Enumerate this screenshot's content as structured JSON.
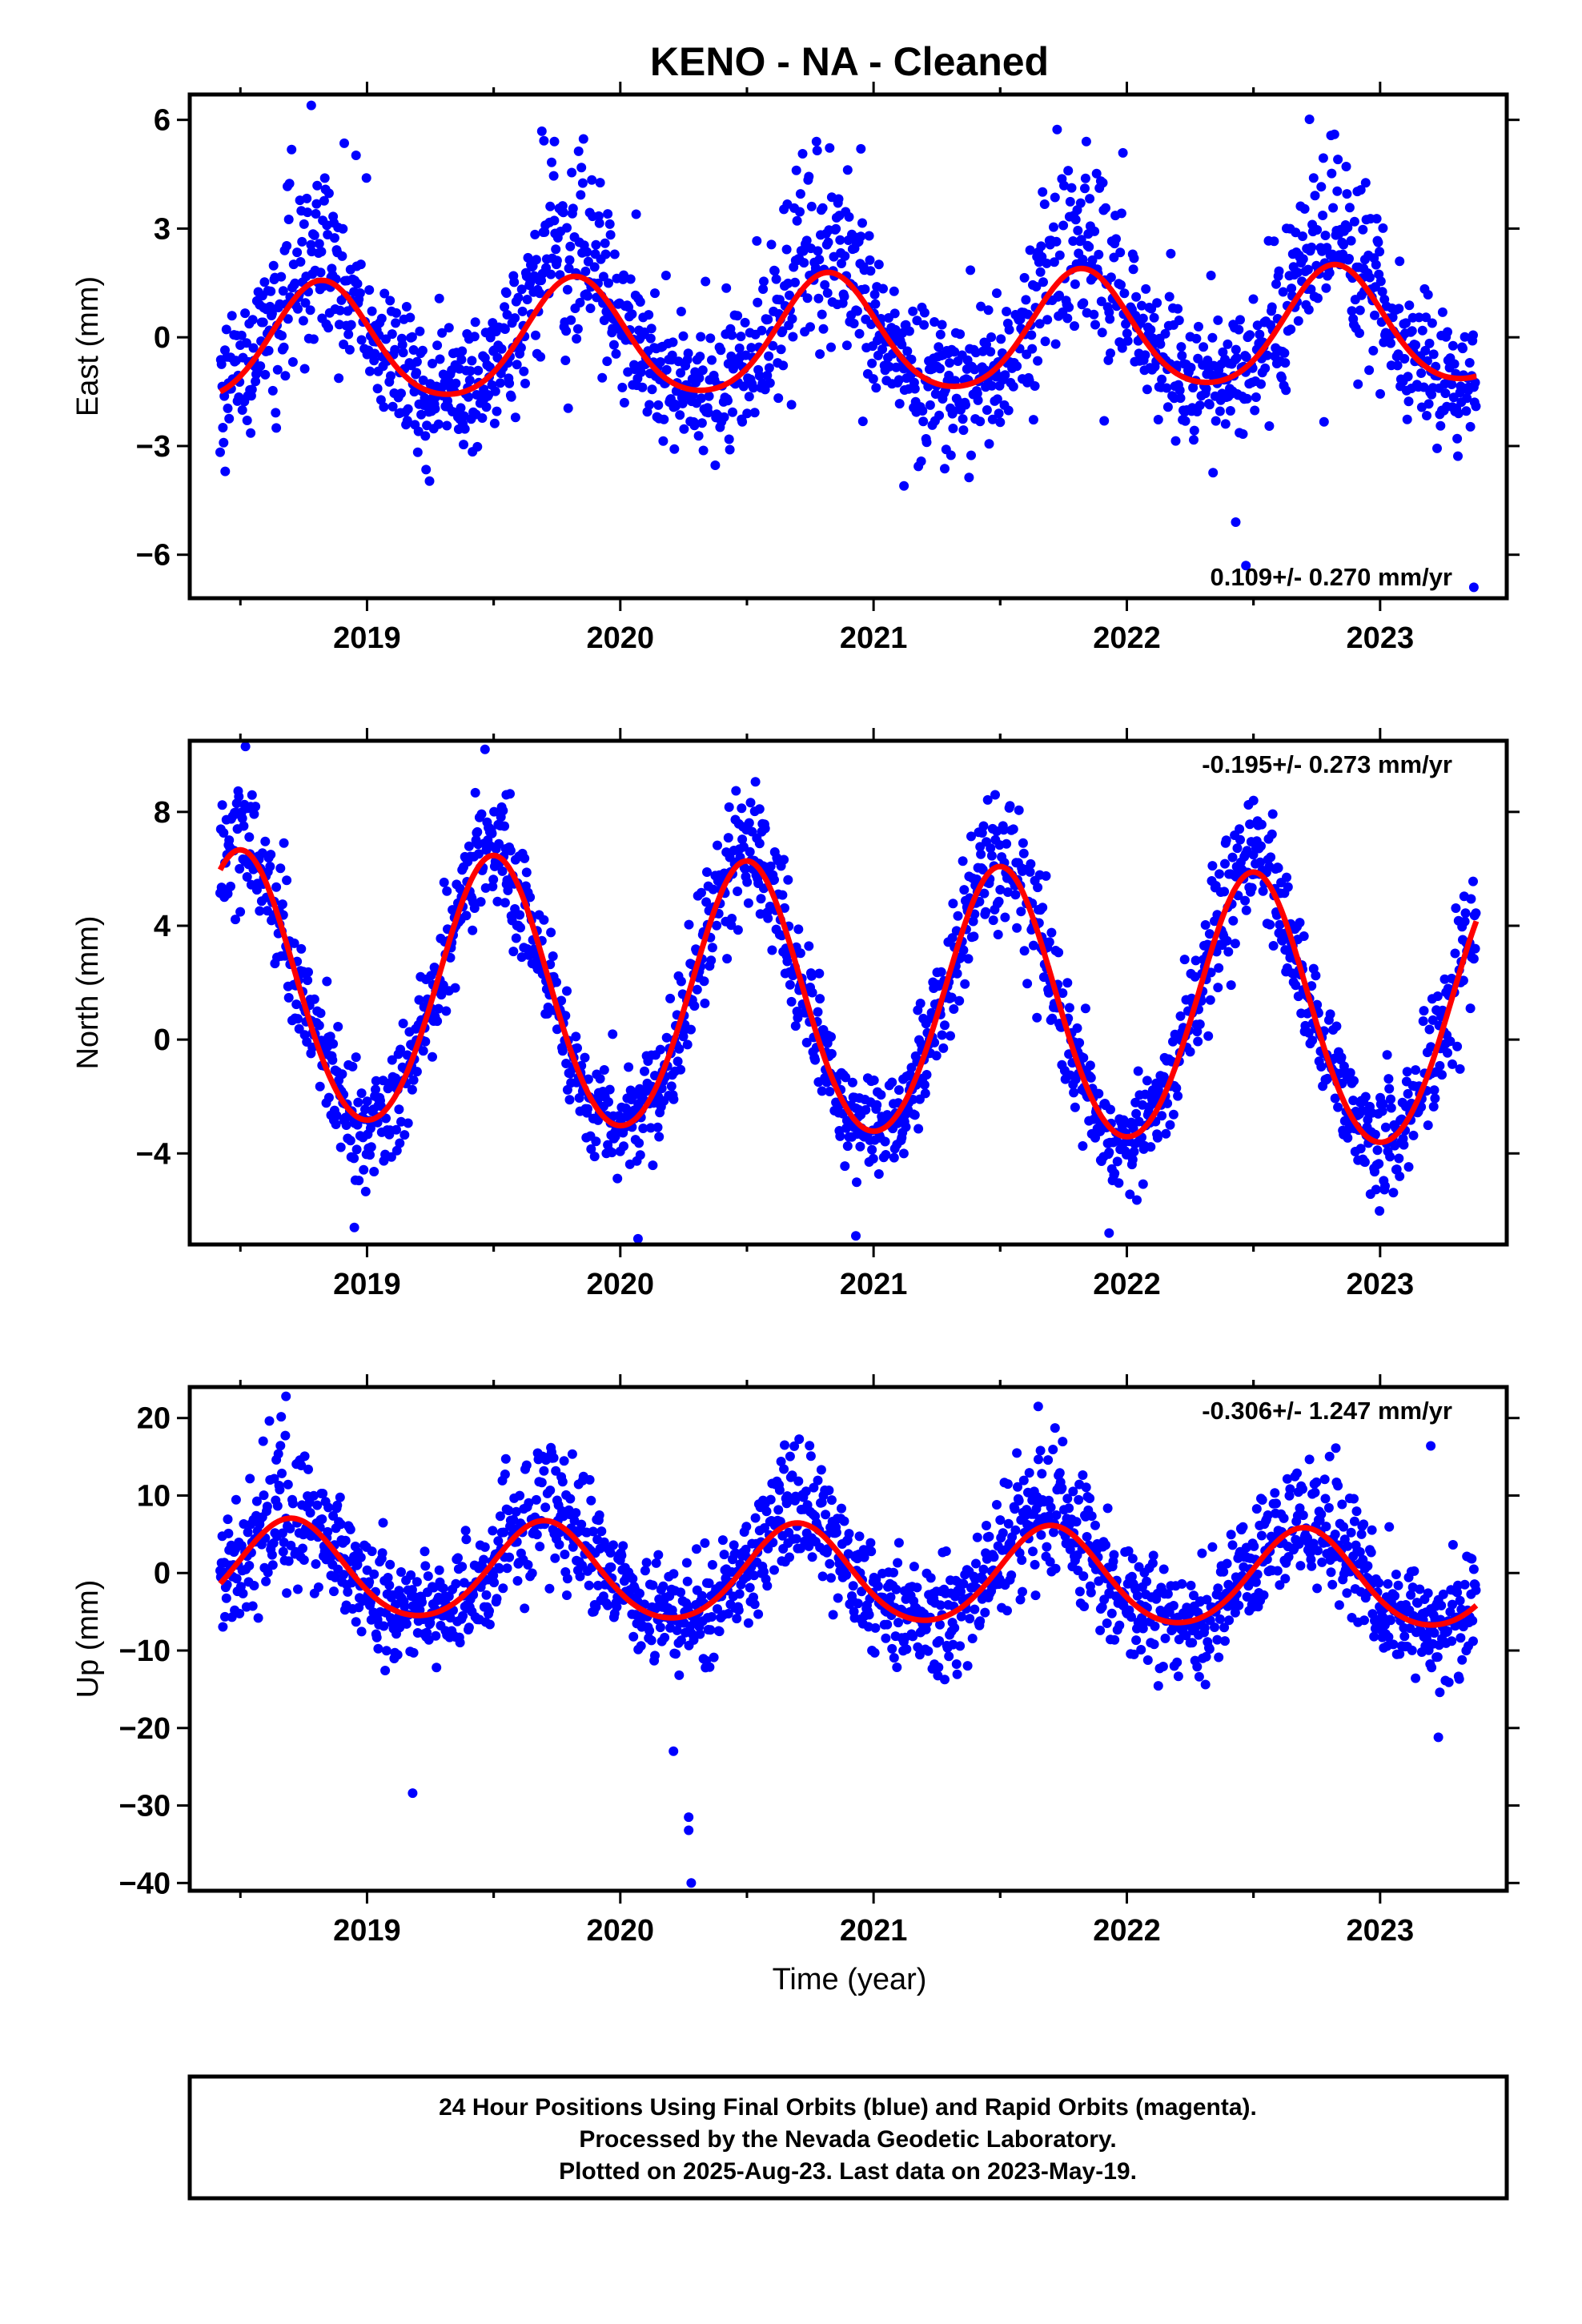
{
  "title": "KENO  - NA - Cleaned",
  "x_axis_label": "Time (year)",
  "footer": {
    "lines": [
      "24 Hour Positions Using Final Orbits (blue) and Rapid Orbits (magenta).",
      "Processed by the Nevada Geodetic Laboratory.",
      "Plotted on 2025-Aug-23. Last data on 2023-May-19."
    ]
  },
  "colors": {
    "points": "#0000ff",
    "model": "#ff0000",
    "frame": "#000000"
  },
  "chart_data": [
    {
      "type": "scatter",
      "panel": "east",
      "ylabel": "East (mm)",
      "rate": "0.109+/- 0.270 mm/yr",
      "rate_position": "bottom-right",
      "xlim": [
        2018.3,
        2023.5
      ],
      "ylim": [
        -7.2,
        6.7
      ],
      "xticks": [
        2019,
        2020,
        2021,
        2022,
        2023
      ],
      "yticks": [
        -6,
        -3,
        0,
        3,
        6
      ],
      "model": {
        "x_start": 2018.42,
        "x_end": 2023.38,
        "offset": 0.0,
        "trend": 0.109,
        "amplitude": 1.6,
        "peak_phase": 0.82,
        "semiannual_amplitude": 0.2,
        "start_value": -1.6,
        "end_value": -1.2
      },
      "scatter": {
        "sd": 0.9,
        "seasonal_extra": 1.2,
        "extra_peak_phase": 0.78
      },
      "outliers": [
        {
          "x": 2018.78,
          "y": 6.4
        },
        {
          "x": 2019.74,
          "y": 5.4
        },
        {
          "x": 2020.95,
          "y": 5.2
        },
        {
          "x": 2021.84,
          "y": 5.4
        },
        {
          "x": 2022.47,
          "y": -6.3
        },
        {
          "x": 2023.37,
          "y": -6.9
        },
        {
          "x": 2018.44,
          "y": -3.7
        },
        {
          "x": 2021.12,
          "y": -4.1
        },
        {
          "x": 2022.43,
          "y": -5.1
        }
      ]
    },
    {
      "type": "scatter",
      "panel": "north",
      "ylabel": "North (mm)",
      "rate": "-0.195+/- 0.273 mm/yr",
      "rate_position": "top-right",
      "xlim": [
        2018.3,
        2023.5
      ],
      "ylim": [
        -7.2,
        10.5
      ],
      "xticks": [
        2019,
        2020,
        2021,
        2022,
        2023
      ],
      "yticks": [
        -4,
        0,
        4,
        8
      ],
      "model": {
        "x_start": 2018.42,
        "x_end": 2023.38,
        "offset": 1.2,
        "trend": -0.195,
        "amplitude": 4.7,
        "peak_phase": 0.5,
        "semiannual_amplitude": 0.3,
        "start_value": 5.4,
        "end_value": 3.4
      },
      "scatter": {
        "sd": 1.0,
        "seasonal_extra": 0.3,
        "extra_peak_phase": 0.5
      },
      "outliers": [
        {
          "x": 2018.52,
          "y": 10.3
        },
        {
          "x": 2019.55,
          "y": 8.6
        },
        {
          "x": 2020.55,
          "y": 8.1
        },
        {
          "x": 2021.48,
          "y": 8.6
        },
        {
          "x": 2022.5,
          "y": 8.4
        },
        {
          "x": 2018.95,
          "y": -6.6
        },
        {
          "x": 2020.07,
          "y": -7.0
        },
        {
          "x": 2020.93,
          "y": -6.9
        },
        {
          "x": 2021.93,
          "y": -6.8
        }
      ]
    },
    {
      "type": "scatter",
      "panel": "up",
      "ylabel": "Up (mm)",
      "rate": "-0.306+/- 1.247 mm/yr",
      "rate_position": "top-right",
      "xlim": [
        2018.3,
        2023.5
      ],
      "ylim": [
        -41,
        24
      ],
      "xticks": [
        2019,
        2020,
        2021,
        2022,
        2023
      ],
      "yticks": [
        -40,
        -30,
        -20,
        -10,
        0,
        10,
        20
      ],
      "model": {
        "x_start": 2018.42,
        "x_end": 2023.38,
        "offset": -0.4,
        "trend": -0.306,
        "amplitude": 6.2,
        "peak_phase": 0.7,
        "semiannual_amplitude": 0.6,
        "start_value": -3.4,
        "end_value": -7.6
      },
      "scatter": {
        "sd": 3.5,
        "seasonal_extra": 2.5,
        "extra_peak_phase": 0.72
      },
      "outliers": [
        {
          "x": 2018.68,
          "y": 22.8
        },
        {
          "x": 2021.65,
          "y": 21.5
        },
        {
          "x": 2019.18,
          "y": -28.4
        },
        {
          "x": 2020.27,
          "y": -31.5
        },
        {
          "x": 2020.27,
          "y": -33.2
        },
        {
          "x": 2020.28,
          "y": -40.0
        },
        {
          "x": 2020.21,
          "y": -23.0
        },
        {
          "x": 2023.2,
          "y": 16.4
        },
        {
          "x": 2023.23,
          "y": -21.2
        }
      ]
    }
  ]
}
